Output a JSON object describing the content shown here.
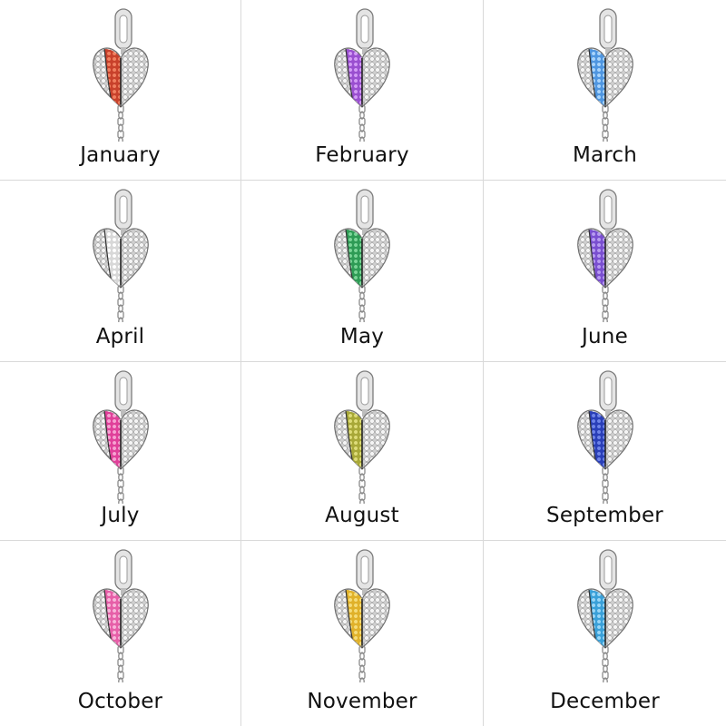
{
  "months": [
    {
      "label": "January",
      "stone_color": "#c8412b",
      "stone_light": "#f08060"
    },
    {
      "label": "February",
      "stone_color": "#9a4fd0",
      "stone_light": "#d39cf5"
    },
    {
      "label": "March",
      "stone_color": "#4f96e0",
      "stone_light": "#a9d4fb"
    },
    {
      "label": "April",
      "stone_color": "#d8d8d8",
      "stone_light": "#ffffff"
    },
    {
      "label": "May",
      "stone_color": "#2e9b55",
      "stone_light": "#7bd497"
    },
    {
      "label": "June",
      "stone_color": "#7a4fd0",
      "stone_light": "#b79bf0"
    },
    {
      "label": "July",
      "stone_color": "#e0409a",
      "stone_light": "#f6a3d2"
    },
    {
      "label": "August",
      "stone_color": "#a8a838",
      "stone_light": "#dedc7a"
    },
    {
      "label": "September",
      "stone_color": "#2a3fb8",
      "stone_light": "#6f84e8"
    },
    {
      "label": "October",
      "stone_color": "#e65fa8",
      "stone_light": "#f8b6da"
    },
    {
      "label": "November",
      "stone_color": "#e0b12a",
      "stone_light": "#f5dc7a"
    },
    {
      "label": "December",
      "stone_color": "#3aa0d8",
      "stone_light": "#9ad6f6"
    }
  ]
}
